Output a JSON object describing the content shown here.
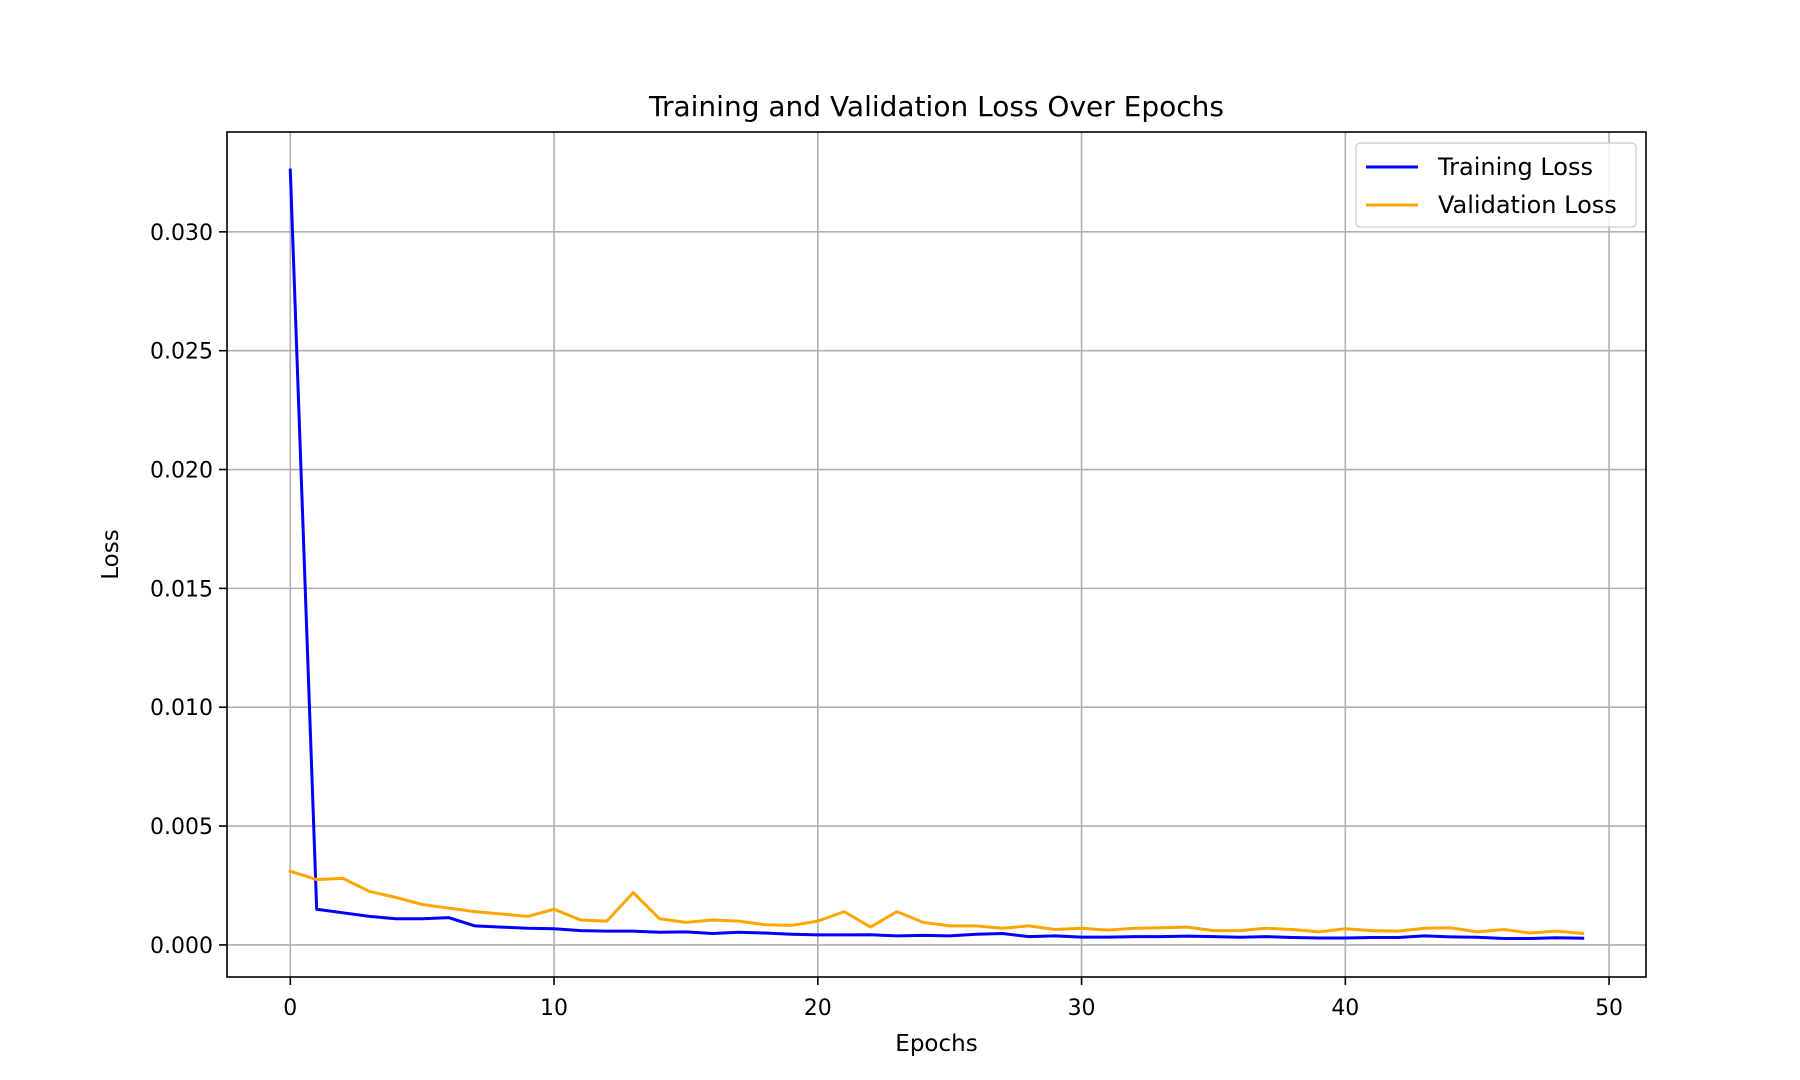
{
  "chart_data": {
    "type": "line",
    "title": "Training and Validation Loss Over Epochs",
    "xlabel": "Epochs",
    "ylabel": "Loss",
    "xlim": [
      -2.4,
      51.4
    ],
    "ylim": [
      -0.00135,
      0.0342
    ],
    "xticks": [
      0,
      10,
      20,
      30,
      40,
      50
    ],
    "yticks": [
      0.0,
      0.005,
      0.01,
      0.015,
      0.02,
      0.025,
      0.03
    ],
    "xtick_labels": [
      "0",
      "10",
      "20",
      "30",
      "40",
      "50"
    ],
    "ytick_labels": [
      "0.000",
      "0.005",
      "0.010",
      "0.015",
      "0.020",
      "0.025",
      "0.030"
    ],
    "grid": true,
    "legend_position": "top-right",
    "x": [
      0,
      1,
      2,
      3,
      4,
      5,
      6,
      7,
      8,
      9,
      10,
      11,
      12,
      13,
      14,
      15,
      16,
      17,
      18,
      19,
      20,
      21,
      22,
      23,
      24,
      25,
      26,
      27,
      28,
      29,
      30,
      31,
      32,
      33,
      34,
      35,
      36,
      37,
      38,
      39,
      40,
      41,
      42,
      43,
      44,
      45,
      46,
      47,
      48,
      49
    ],
    "series": [
      {
        "name": "Training Loss",
        "color": "#0000ff",
        "values": [
          0.0326,
          0.0015,
          0.00135,
          0.0012,
          0.0011,
          0.0011,
          0.00115,
          0.0008,
          0.00075,
          0.0007,
          0.00068,
          0.0006,
          0.00058,
          0.00058,
          0.00053,
          0.00055,
          0.00048,
          0.00053,
          0.0005,
          0.00045,
          0.00042,
          0.00042,
          0.00043,
          0.00038,
          0.0004,
          0.00038,
          0.00045,
          0.00048,
          0.00035,
          0.00038,
          0.00033,
          0.00033,
          0.00035,
          0.00035,
          0.00037,
          0.00035,
          0.00032,
          0.00035,
          0.00031,
          0.00029,
          0.00029,
          0.00031,
          0.00031,
          0.00038,
          0.00034,
          0.00032,
          0.00027,
          0.00027,
          0.0003,
          0.00028
        ]
      },
      {
        "name": "Validation Loss",
        "color": "#ffa500",
        "values": [
          0.0031,
          0.00275,
          0.0028,
          0.00225,
          0.002,
          0.0017,
          0.00155,
          0.0014,
          0.0013,
          0.0012,
          0.0015,
          0.00105,
          0.001,
          0.0022,
          0.0011,
          0.00095,
          0.00105,
          0.001,
          0.00085,
          0.00082,
          0.001,
          0.0014,
          0.00075,
          0.0014,
          0.00095,
          0.0008,
          0.0008,
          0.0007,
          0.0008,
          0.00065,
          0.0007,
          0.00062,
          0.0007,
          0.00072,
          0.00075,
          0.0006,
          0.0006,
          0.0007,
          0.00065,
          0.00055,
          0.00068,
          0.0006,
          0.00058,
          0.0007,
          0.00072,
          0.00055,
          0.00065,
          0.0005,
          0.00058,
          0.00048
        ]
      }
    ]
  }
}
